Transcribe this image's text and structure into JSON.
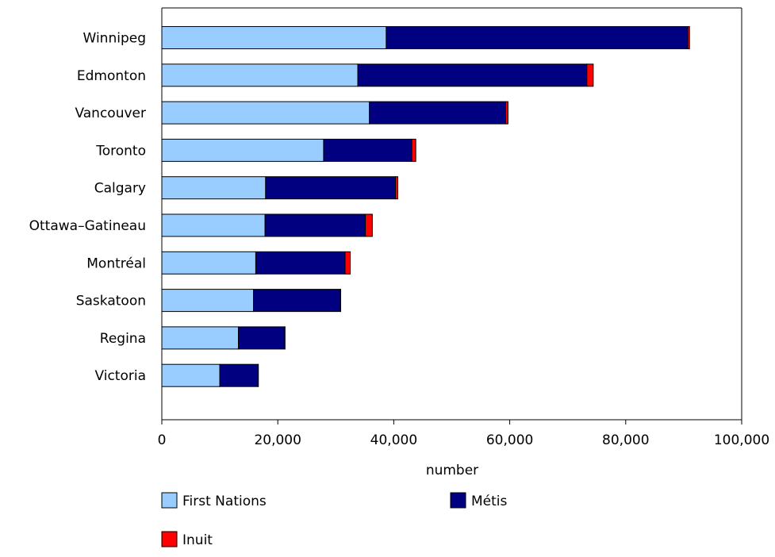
{
  "chart_data": {
    "type": "bar",
    "orientation": "horizontal",
    "stacked": true,
    "title": "",
    "xlabel": "number",
    "ylabel": "",
    "xlim": [
      0,
      100000
    ],
    "x_ticks": [
      0,
      20000,
      40000,
      60000,
      80000,
      100000
    ],
    "x_tick_labels": [
      "0",
      "20,000",
      "40,000",
      "60,000",
      "80,000",
      "100,000"
    ],
    "grid": false,
    "legend_position": "bottom",
    "categories": [
      "Winnipeg",
      "Edmonton",
      "Vancouver",
      "Toronto",
      "Calgary",
      "Ottawa–Gatineau",
      "Montréal",
      "Saskatoon",
      "Regina",
      "Victoria"
    ],
    "series": [
      {
        "name": "First Nations",
        "color": "#99ccff",
        "values": [
          38700,
          33800,
          35800,
          27900,
          17900,
          17800,
          16200,
          15800,
          13200,
          10000
        ]
      },
      {
        "name": "Métis",
        "color": "#000080",
        "values": [
          52000,
          39500,
          23500,
          15200,
          22400,
          17300,
          15400,
          15000,
          8000,
          6600
        ]
      },
      {
        "name": "Inuit",
        "color": "#ff0000",
        "values": [
          300,
          1100,
          400,
          700,
          400,
          1200,
          900,
          50,
          50,
          50
        ]
      }
    ]
  }
}
